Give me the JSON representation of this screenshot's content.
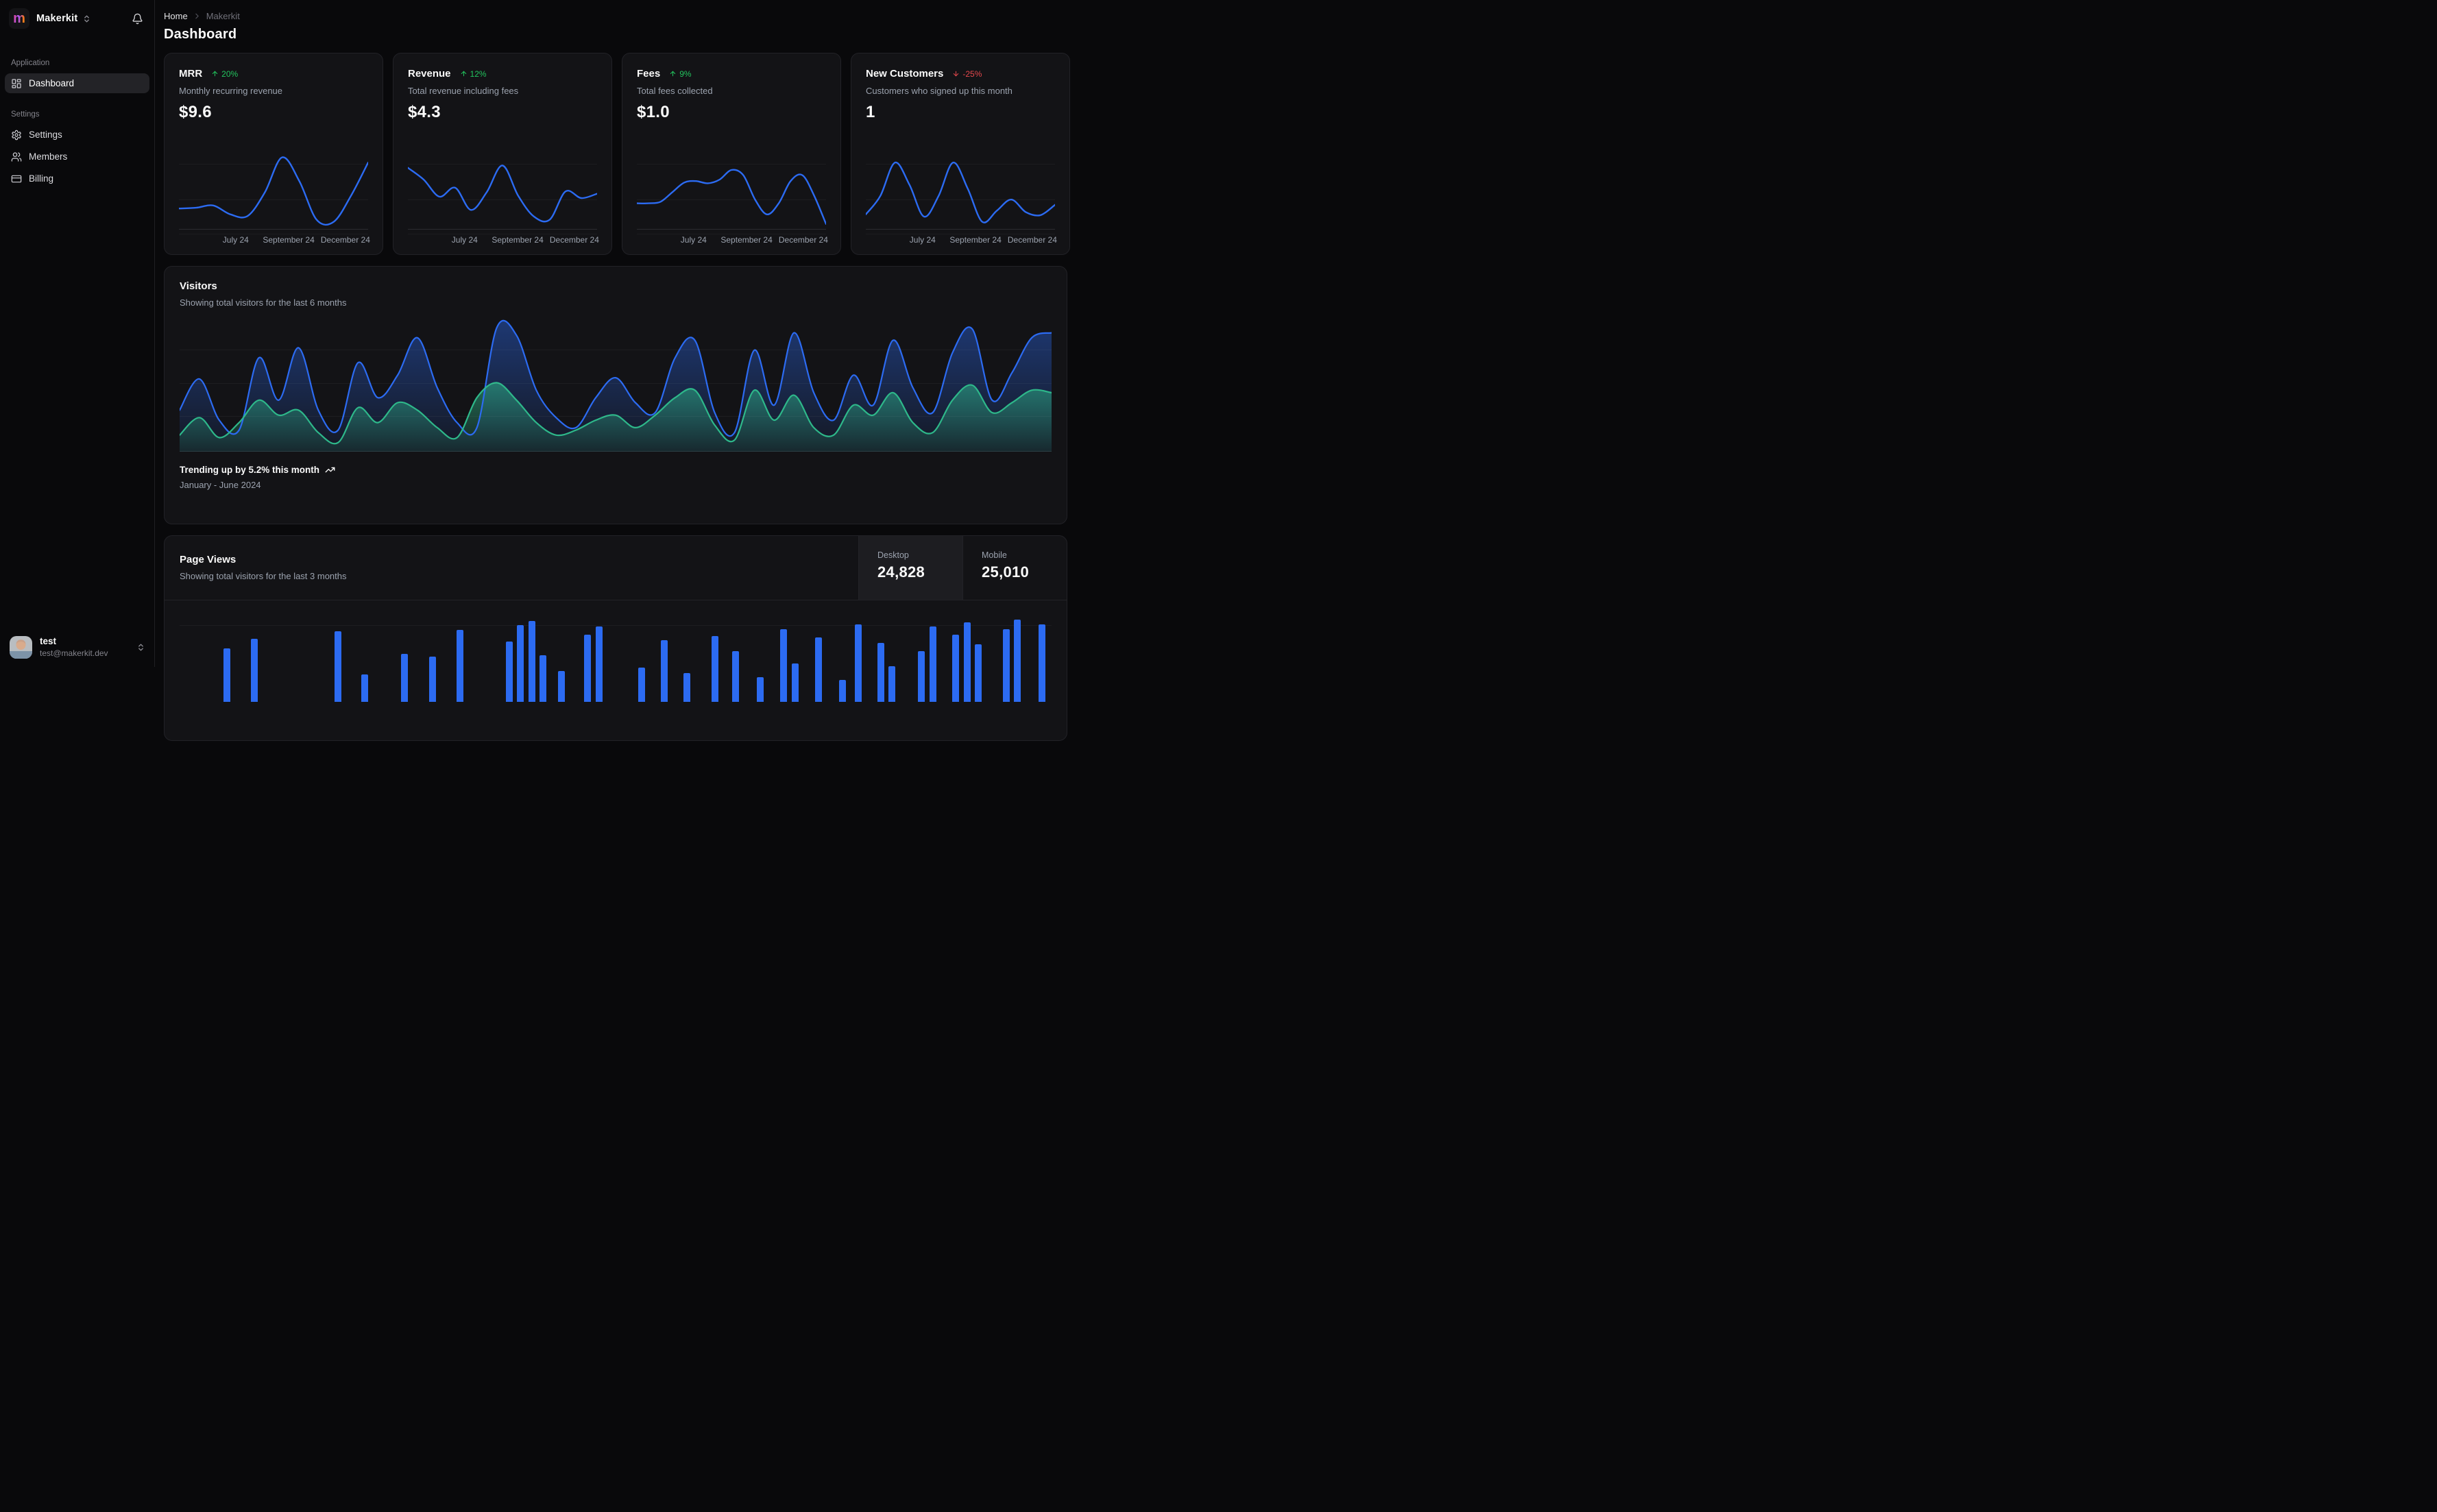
{
  "colors": {
    "accent_blue": "#2c6bf2",
    "accent_green": "#2eb88a",
    "badge_green": "#22c55e",
    "badge_red": "#e5484d"
  },
  "sidebar": {
    "workspace_name": "Makerkit",
    "logo_letter": "m",
    "sections": [
      {
        "label": "Application",
        "items": [
          {
            "label": "Dashboard",
            "icon": "layout-dashboard-icon",
            "active": true
          }
        ]
      },
      {
        "label": "Settings",
        "items": [
          {
            "label": "Settings",
            "icon": "gear-icon",
            "active": false
          },
          {
            "label": "Members",
            "icon": "users-icon",
            "active": false
          },
          {
            "label": "Billing",
            "icon": "credit-card-icon",
            "active": false
          }
        ]
      }
    ],
    "user": {
      "name": "test",
      "email": "test@makerkit.dev"
    }
  },
  "breadcrumb": {
    "home": "Home",
    "current": "Makerkit"
  },
  "page": {
    "title": "Dashboard"
  },
  "stat_cards": [
    {
      "title": "MRR",
      "badge": "20%",
      "trend": "up",
      "description": "Monthly recurring revenue",
      "value": "$9.6"
    },
    {
      "title": "Revenue",
      "badge": "12%",
      "trend": "up",
      "description": "Total revenue including fees",
      "value": "$4.3"
    },
    {
      "title": "Fees",
      "badge": "9%",
      "trend": "up",
      "description": "Total fees collected",
      "value": "$1.0"
    },
    {
      "title": "New Customers",
      "badge": "-25%",
      "trend": "down",
      "description": "Customers who signed up this month",
      "value": "1"
    }
  ],
  "visitors_card": {
    "title": "Visitors",
    "subtitle": "Showing total visitors for the last 6 months",
    "footer_title": "Trending up by 5.2% this month",
    "footer_subtitle": "January - June 2024"
  },
  "page_views_card": {
    "title": "Page Views",
    "subtitle": "Showing total visitors for the last 3 months",
    "tabs": [
      {
        "label": "Desktop",
        "value": "24,828",
        "active": true
      },
      {
        "label": "Mobile",
        "value": "25,010",
        "active": false
      }
    ]
  },
  "chart_data": [
    {
      "id": "mrr-spark",
      "type": "line",
      "title": "MRR trend",
      "color": "#2c6bf2",
      "x_ticks": [
        "July 24",
        "September 24",
        "December 24"
      ],
      "values": [
        23,
        24,
        27,
        15,
        13,
        45,
        92,
        60,
        8,
        5,
        40,
        85
      ]
    },
    {
      "id": "revenue-spark",
      "type": "line",
      "title": "Revenue trend",
      "color": "#2c6bf2",
      "x_ticks": [
        "July 24",
        "September 24",
        "December 24"
      ],
      "values": [
        78,
        62,
        39,
        51,
        21,
        45,
        81,
        40,
        12,
        8,
        46,
        37,
        43
      ]
    },
    {
      "id": "fees-spark",
      "type": "line",
      "title": "Fees trend",
      "color": "#2c6bf2",
      "x_ticks": [
        "July 24",
        "September 24",
        "December 24"
      ],
      "values": [
        30,
        30,
        32,
        45,
        58,
        60,
        57,
        62,
        75,
        68,
        35,
        15,
        30,
        60,
        68,
        40,
        2
      ]
    },
    {
      "id": "new-customers-spark",
      "type": "line",
      "title": "New customers trend",
      "color": "#2c6bf2",
      "x_ticks": [
        "July 24",
        "September 24",
        "December 24"
      ],
      "values": [
        15,
        40,
        85,
        55,
        12,
        40,
        85,
        50,
        5,
        20,
        35,
        18,
        14,
        28
      ]
    },
    {
      "id": "visitors-area",
      "type": "area",
      "title": "Visitors (last 6 months)",
      "x_range": "January - June 2024",
      "grid": true,
      "legend": "none",
      "series": [
        {
          "name": "desktop",
          "color": "#2c6bf2",
          "values": [
            30,
            55,
            22,
            14,
            72,
            38,
            80,
            30,
            14,
            68,
            40,
            58,
            88,
            48,
            20,
            16,
            96,
            90,
            46,
            24,
            16,
            40,
            56,
            36,
            28,
            72,
            86,
            28,
            12,
            78,
            34,
            92,
            44,
            22,
            58,
            34,
            86,
            48,
            28,
            76,
            95,
            38,
            60,
            88,
            92
          ]
        },
        {
          "name": "mobile",
          "color": "#2eb88a",
          "values": [
            10,
            24,
            8,
            20,
            38,
            26,
            30,
            12,
            4,
            32,
            20,
            36,
            30,
            16,
            8,
            40,
            52,
            38,
            20,
            10,
            14,
            22,
            26,
            16,
            26,
            40,
            46,
            18,
            6,
            46,
            22,
            42,
            16,
            10,
            34,
            26,
            44,
            20,
            12,
            38,
            50,
            28,
            36,
            46,
            44
          ]
        }
      ]
    },
    {
      "id": "page-views-bars",
      "type": "bar",
      "title": "Page views (last 3 months)",
      "color": "#2c6bf2",
      "bars": [
        [
          5.0,
          78
        ],
        [
          8.2,
          92
        ],
        [
          17.8,
          103
        ],
        [
          20.8,
          40
        ],
        [
          25.4,
          70
        ],
        [
          28.6,
          66
        ],
        [
          31.8,
          105
        ],
        [
          37.4,
          88
        ],
        [
          38.7,
          112
        ],
        [
          40.0,
          118
        ],
        [
          41.3,
          68
        ],
        [
          43.4,
          45
        ],
        [
          46.4,
          98
        ],
        [
          47.7,
          110
        ],
        [
          52.6,
          50
        ],
        [
          55.2,
          90
        ],
        [
          57.8,
          42
        ],
        [
          61.0,
          96
        ],
        [
          63.4,
          74
        ],
        [
          66.2,
          36
        ],
        [
          68.9,
          106
        ],
        [
          70.2,
          56
        ],
        [
          72.9,
          94
        ],
        [
          75.6,
          32
        ],
        [
          77.4,
          113
        ],
        [
          80.0,
          86
        ],
        [
          81.3,
          52
        ],
        [
          84.7,
          74
        ],
        [
          86.0,
          110
        ],
        [
          88.6,
          98
        ],
        [
          89.9,
          116
        ],
        [
          91.2,
          84
        ],
        [
          94.4,
          106
        ],
        [
          95.7,
          120
        ],
        [
          98.5,
          113
        ]
      ]
    }
  ]
}
